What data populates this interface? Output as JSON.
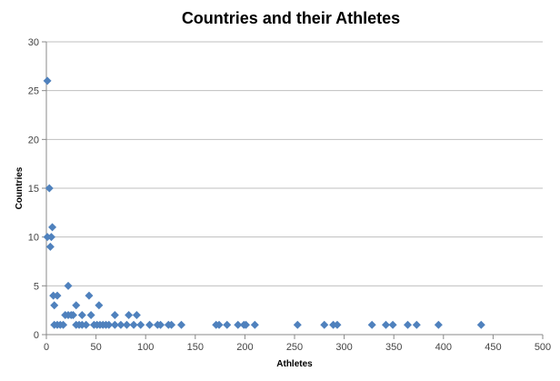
{
  "chart_data": {
    "type": "scatter",
    "title": "Countries and their Athletes",
    "xlabel": "Athletes",
    "ylabel": "Countries",
    "xlim": [
      0,
      500
    ],
    "ylim": [
      0,
      30
    ],
    "xticks": [
      0,
      50,
      100,
      150,
      200,
      250,
      300,
      350,
      400,
      450,
      500
    ],
    "yticks": [
      0,
      5,
      10,
      15,
      20,
      25,
      30
    ],
    "grid": "horizontal",
    "legend": "none",
    "marker": "diamond",
    "color": "#4f81bd",
    "points": [
      [
        1,
        26
      ],
      [
        3,
        15
      ],
      [
        6,
        11
      ],
      [
        1,
        10
      ],
      [
        5,
        10
      ],
      [
        4,
        9
      ],
      [
        22,
        5
      ],
      [
        7,
        4
      ],
      [
        11,
        4
      ],
      [
        43,
        4
      ],
      [
        8,
        3
      ],
      [
        30,
        3
      ],
      [
        53,
        3
      ],
      [
        19,
        2
      ],
      [
        22,
        2
      ],
      [
        25,
        2
      ],
      [
        27,
        2
      ],
      [
        36,
        2
      ],
      [
        45,
        2
      ],
      [
        69,
        2
      ],
      [
        83,
        2
      ],
      [
        91,
        2
      ],
      [
        8,
        1
      ],
      [
        11,
        1
      ],
      [
        14,
        1
      ],
      [
        17,
        1
      ],
      [
        30,
        1
      ],
      [
        33,
        1
      ],
      [
        36,
        1
      ],
      [
        40,
        1
      ],
      [
        48,
        1
      ],
      [
        51,
        1
      ],
      [
        54,
        1
      ],
      [
        57,
        1
      ],
      [
        60,
        1
      ],
      [
        63,
        1
      ],
      [
        69,
        1
      ],
      [
        75,
        1
      ],
      [
        81,
        1
      ],
      [
        88,
        1
      ],
      [
        95,
        1
      ],
      [
        104,
        1
      ],
      [
        112,
        1
      ],
      [
        115,
        1
      ],
      [
        123,
        1
      ],
      [
        126,
        1
      ],
      [
        136,
        1
      ],
      [
        171,
        1
      ],
      [
        174,
        1
      ],
      [
        182,
        1
      ],
      [
        193,
        1
      ],
      [
        199,
        1
      ],
      [
        201,
        1
      ],
      [
        210,
        1
      ],
      [
        253,
        1
      ],
      [
        280,
        1
      ],
      [
        289,
        1
      ],
      [
        293,
        1
      ],
      [
        328,
        1
      ],
      [
        342,
        1
      ],
      [
        349,
        1
      ],
      [
        364,
        1
      ],
      [
        373,
        1
      ],
      [
        395,
        1
      ],
      [
        438,
        1
      ]
    ]
  }
}
